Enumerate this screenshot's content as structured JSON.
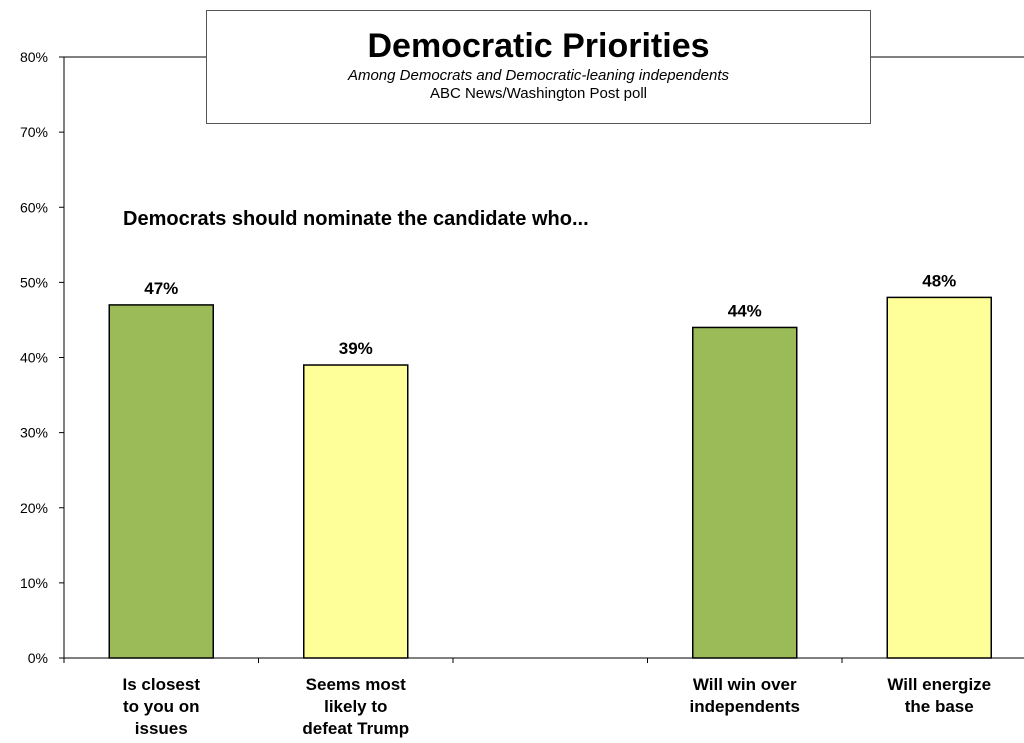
{
  "chart_data": {
    "type": "bar",
    "title": "Democratic Priorities",
    "subtitle": "Among Democrats and Democratic-leaning independents",
    "source": "ABC News/Washington Post poll",
    "annotation": "Democrats should nominate the candidate who...",
    "ylim": [
      0,
      80
    ],
    "yticks": [
      "0%",
      "10%",
      "20%",
      "30%",
      "40%",
      "50%",
      "60%",
      "70%",
      "80%"
    ],
    "grid": false,
    "categories": [
      [
        "Is closest",
        "to you on",
        "issues"
      ],
      [
        "Seems most",
        "likely to",
        "defeat Trump"
      ],
      [
        "Will win over",
        "independents"
      ],
      [
        "Will energize",
        "the base"
      ]
    ],
    "values": [
      47,
      39,
      44,
      48
    ],
    "value_labels": [
      "47%",
      "39%",
      "44%",
      "48%"
    ],
    "slot_positions": [
      0,
      1,
      3,
      4
    ],
    "colors": [
      "#9bbb59",
      "#ffff99",
      "#9bbb59",
      "#ffff99"
    ]
  }
}
